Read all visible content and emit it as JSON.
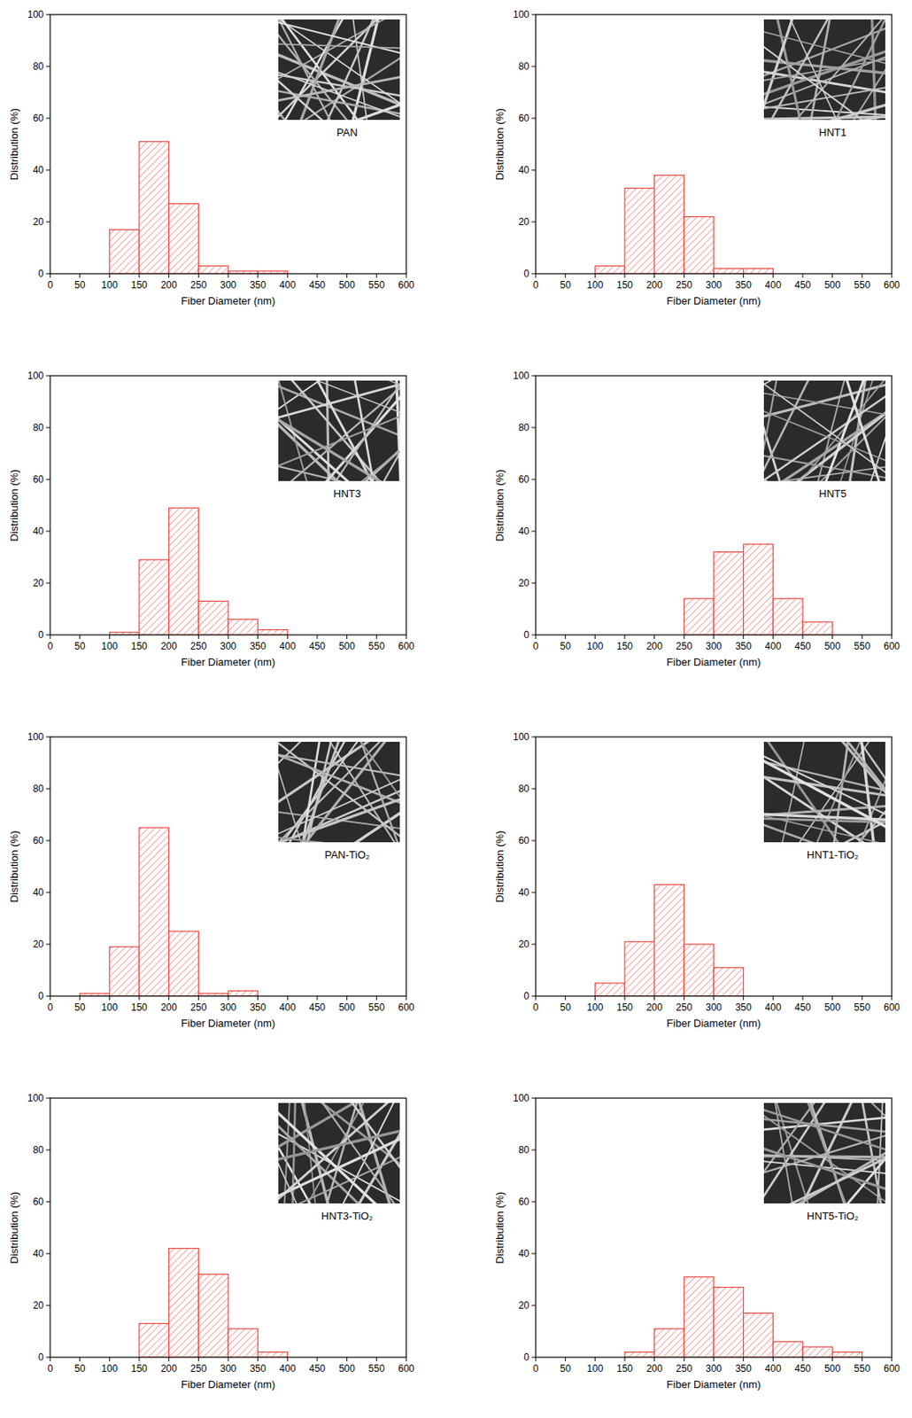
{
  "chart_data": [
    {
      "type": "histogram",
      "title": "PAN",
      "x_label": "Fiber Diameter (nm)",
      "y_label": "Distribution (%)",
      "color": "#e8473f",
      "bins": [
        100,
        150,
        200,
        250,
        300,
        350,
        400
      ],
      "values": [
        17,
        51,
        27,
        3,
        1,
        1
      ],
      "xlim": [
        0,
        600
      ],
      "xticks": [
        0,
        50,
        100,
        150,
        200,
        250,
        300,
        350,
        400,
        450,
        500,
        550,
        600
      ],
      "ylim": [
        0,
        100
      ],
      "yticks": [
        0,
        20,
        40,
        60,
        80,
        100
      ]
    },
    {
      "type": "histogram",
      "title": "HNT1",
      "x_label": "Fiber Diameter (nm)",
      "y_label": "Distribution (%)",
      "color": "#e8473f",
      "bins": [
        100,
        150,
        200,
        250,
        300,
        350,
        400
      ],
      "values": [
        3,
        33,
        38,
        22,
        2,
        2
      ],
      "xlim": [
        0,
        600
      ],
      "xticks": [
        0,
        50,
        100,
        150,
        200,
        250,
        300,
        350,
        400,
        450,
        500,
        550,
        600
      ],
      "ylim": [
        0,
        100
      ],
      "yticks": [
        0,
        20,
        40,
        60,
        80,
        100
      ]
    },
    {
      "type": "histogram",
      "title": "HNT3",
      "x_label": "Fiber Diameter (nm)",
      "y_label": "Distribution (%)",
      "color": "#e8473f",
      "bins": [
        100,
        150,
        200,
        250,
        300,
        350,
        400
      ],
      "values": [
        1,
        29,
        49,
        13,
        6,
        2
      ],
      "xlim": [
        0,
        600
      ],
      "xticks": [
        0,
        50,
        100,
        150,
        200,
        250,
        300,
        350,
        400,
        450,
        500,
        550,
        600
      ],
      "ylim": [
        0,
        100
      ],
      "yticks": [
        0,
        20,
        40,
        60,
        80,
        100
      ]
    },
    {
      "type": "histogram",
      "title": "HNT5",
      "x_label": "Fiber Diameter (nm)",
      "y_label": "Distribution (%)",
      "color": "#e8473f",
      "bins": [
        250,
        300,
        350,
        400,
        450,
        500
      ],
      "values": [
        14,
        32,
        35,
        14,
        5
      ],
      "xlim": [
        0,
        600
      ],
      "xticks": [
        0,
        50,
        100,
        150,
        200,
        250,
        300,
        350,
        400,
        450,
        500,
        550,
        600
      ],
      "ylim": [
        0,
        100
      ],
      "yticks": [
        0,
        20,
        40,
        60,
        80,
        100
      ]
    },
    {
      "type": "histogram",
      "title": "PAN-TiO₂",
      "x_label": "Fiber Diameter (nm)",
      "y_label": "Distribution (%)",
      "color": "#e8473f",
      "bins": [
        50,
        100,
        150,
        200,
        250,
        300,
        350
      ],
      "values": [
        1,
        19,
        65,
        25,
        1,
        2
      ],
      "xlim": [
        0,
        600
      ],
      "xticks": [
        0,
        50,
        100,
        150,
        200,
        250,
        300,
        350,
        400,
        450,
        500,
        550,
        600
      ],
      "ylim": [
        0,
        100
      ],
      "yticks": [
        0,
        20,
        40,
        60,
        80,
        100
      ]
    },
    {
      "type": "histogram",
      "title": "HNT1-TiO₂",
      "x_label": "Fiber Diameter (nm)",
      "y_label": "Distribution (%)",
      "color": "#e8473f",
      "bins": [
        100,
        150,
        200,
        250,
        300,
        350
      ],
      "values": [
        5,
        21,
        43,
        20,
        11
      ],
      "xlim": [
        0,
        600
      ],
      "xticks": [
        0,
        50,
        100,
        150,
        200,
        250,
        300,
        350,
        400,
        450,
        500,
        550,
        600
      ],
      "ylim": [
        0,
        100
      ],
      "yticks": [
        0,
        20,
        40,
        60,
        80,
        100
      ]
    },
    {
      "type": "histogram",
      "title": "HNT3-TiO₂",
      "x_label": "Fiber Diameter (nm)",
      "y_label": "Distribution (%)",
      "color": "#e8473f",
      "bins": [
        150,
        200,
        250,
        300,
        350,
        400
      ],
      "values": [
        13,
        42,
        32,
        11,
        2
      ],
      "xlim": [
        0,
        600
      ],
      "xticks": [
        0,
        50,
        100,
        150,
        200,
        250,
        300,
        350,
        400,
        450,
        500,
        550,
        600
      ],
      "ylim": [
        0,
        100
      ],
      "yticks": [
        0,
        20,
        40,
        60,
        80,
        100
      ]
    },
    {
      "type": "histogram",
      "title": "HNT5-TiO₂",
      "x_label": "Fiber Diameter (nm)",
      "y_label": "Distribution (%)",
      "color": "#e8473f",
      "bins": [
        150,
        200,
        250,
        300,
        350,
        400,
        450,
        500,
        550
      ],
      "values": [
        2,
        11,
        31,
        27,
        17,
        6,
        4,
        2
      ],
      "xlim": [
        0,
        600
      ],
      "xticks": [
        0,
        50,
        100,
        150,
        200,
        250,
        300,
        350,
        400,
        450,
        500,
        550,
        600
      ],
      "ylim": [
        0,
        100
      ],
      "yticks": [
        0,
        20,
        40,
        60,
        80,
        100
      ]
    }
  ]
}
